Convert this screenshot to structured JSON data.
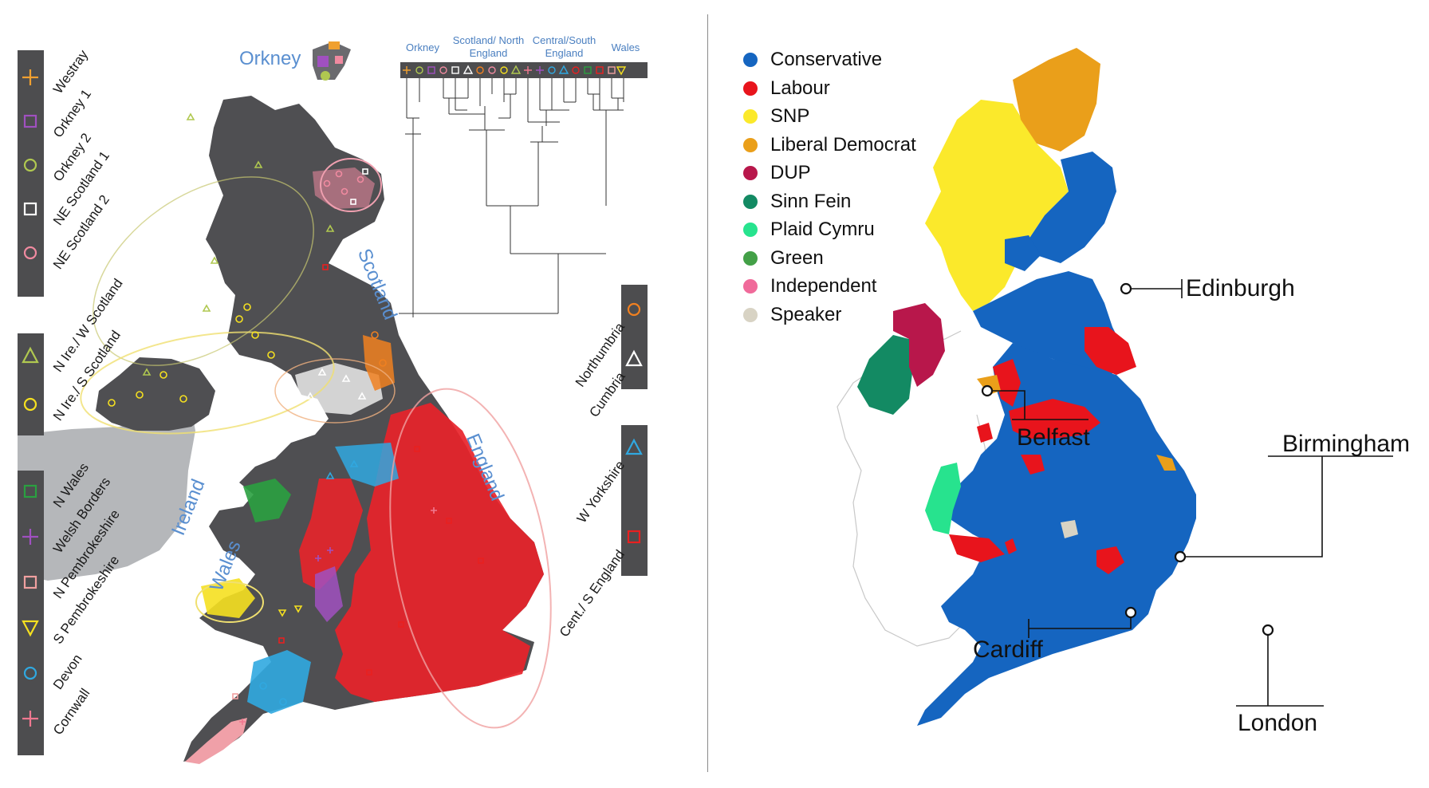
{
  "left_panel": {
    "legend_group_a": [
      {
        "label": "Westray",
        "symbol": "plus",
        "color": "#f0a030"
      },
      {
        "label": "Orkney 1",
        "symbol": "square",
        "color": "#a050c0"
      },
      {
        "label": "Orkney 2",
        "symbol": "circle",
        "color": "#b0c850"
      },
      {
        "label": "NE Scotland 1",
        "symbol": "square",
        "color": "#ffffff"
      },
      {
        "label": "NE Scotland 2",
        "symbol": "circle",
        "color": "#f08aa0"
      }
    ],
    "legend_group_b": [
      {
        "label": "N Ire./ W Scotland",
        "symbol": "triangle",
        "color": "#b0c850"
      },
      {
        "label": "N Ire./ S Scotland",
        "symbol": "circle",
        "color": "#f5e020"
      }
    ],
    "legend_group_c": [
      {
        "label": "N Wales",
        "symbol": "square",
        "color": "#2aa040"
      },
      {
        "label": "Welsh Borders",
        "symbol": "plus",
        "color": "#a050c0"
      },
      {
        "label": "N Pembrokeshire",
        "symbol": "square",
        "color": "#f0a0a0"
      },
      {
        "label": "S Pembrokeshire",
        "symbol": "triangle-down",
        "color": "#f5e020"
      },
      {
        "label": "Devon",
        "symbol": "circle",
        "color": "#30a8e0"
      },
      {
        "label": "Cornwall",
        "symbol": "plus",
        "color": "#f07890"
      }
    ],
    "legend_group_d": [
      {
        "label": "Northumbria",
        "symbol": "circle",
        "color": "#f08020"
      },
      {
        "label": "Cumbria",
        "symbol": "triangle",
        "color": "#ffffff"
      }
    ],
    "legend_group_e": [
      {
        "label": "W Yorkshire",
        "symbol": "triangle",
        "color": "#30a8e0"
      },
      {
        "label": "Cent./ S England",
        "symbol": "square",
        "color": "#e82020"
      }
    ],
    "region_labels": {
      "orkney": "Orkney",
      "scotland": "Scotland",
      "ireland": "Ireland",
      "wales": "Wales",
      "england": "England"
    },
    "dendrogram_headers": [
      "Orkney",
      "Scotland/ North England",
      "Central/South England",
      "Wales"
    ],
    "colors": {
      "panel": "#4d4d4f",
      "land": "#4f4f52",
      "ireland_rep": "#b5b7ba",
      "region_text": "#5a8fd0"
    }
  },
  "right_panel": {
    "legend": [
      {
        "label": "Conservative",
        "color": "#1565c0"
      },
      {
        "label": "Labour",
        "color": "#e8141c"
      },
      {
        "label": "SNP",
        "color": "#fbe92b"
      },
      {
        "label": "Liberal Democrat",
        "color": "#ea9f1a"
      },
      {
        "label": "DUP",
        "color": "#b8174b"
      },
      {
        "label": "Sinn Fein",
        "color": "#138a63"
      },
      {
        "label": "Plaid Cymru",
        "color": "#27e38e"
      },
      {
        "label": "Green",
        "color": "#43a047"
      },
      {
        "label": "Independent",
        "color": "#f06a9a"
      },
      {
        "label": "Speaker",
        "color": "#d8d3c4"
      }
    ],
    "cities": [
      "Edinburgh",
      "Belfast",
      "Birmingham",
      "Cardiff",
      "London"
    ]
  }
}
